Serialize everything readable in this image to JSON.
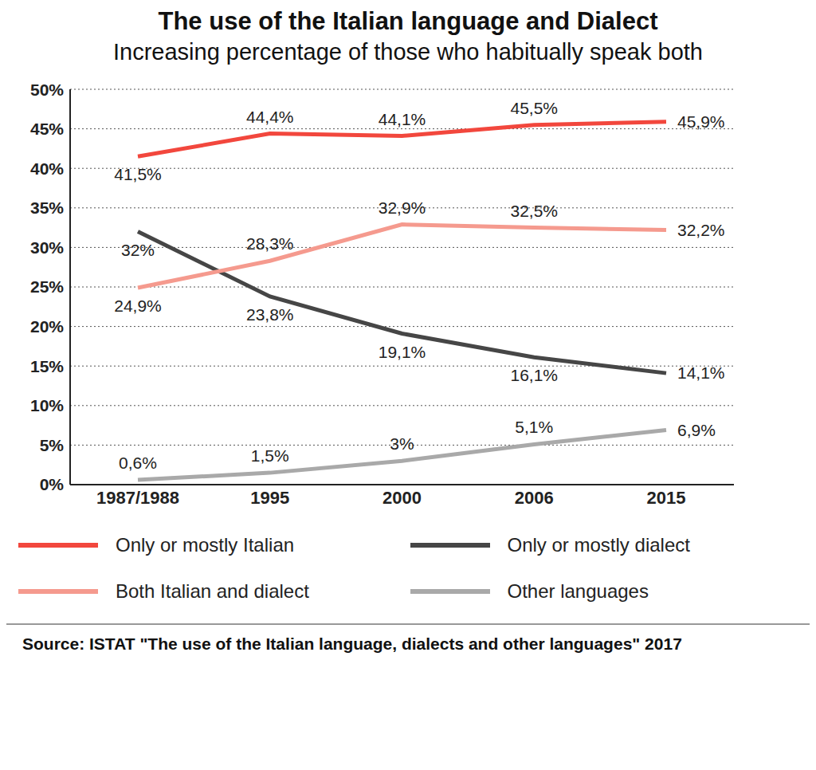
{
  "chart_data": {
    "type": "line",
    "title": "The use of the Italian language and Dialect",
    "subtitle": "Increasing percentage of those who habitually speak both",
    "categories": [
      "1987/1988",
      "1995",
      "2000",
      "2006",
      "2015"
    ],
    "series": [
      {
        "name": "Only or mostly Italian",
        "color": "#f2473d",
        "values": [
          41.5,
          44.4,
          44.1,
          45.5,
          45.9
        ],
        "value_labels": [
          "41,5%",
          "44,4%",
          "44,1%",
          "45,5%",
          "45,9%"
        ]
      },
      {
        "name": "Only or mostly dialect",
        "color": "#464646",
        "values": [
          32,
          23.8,
          19.1,
          16.1,
          14.1
        ],
        "value_labels": [
          "32%",
          "23,8%",
          "19,1%",
          "16,1%",
          "14,1%"
        ]
      },
      {
        "name": "Both Italian and dialect",
        "color": "#f59a8e",
        "values": [
          24.9,
          28.3,
          32.9,
          32.5,
          32.2
        ],
        "value_labels": [
          "24,9%",
          "28,3%",
          "32,9%",
          "32,5%",
          "32,2%"
        ]
      },
      {
        "name": "Other languages",
        "color": "#a9a9a9",
        "values": [
          0.6,
          1.5,
          3,
          5.1,
          6.9
        ],
        "value_labels": [
          "0,6%",
          "1,5%",
          "3%",
          "5,1%",
          "6,9%"
        ]
      }
    ],
    "ylim": [
      0,
      50
    ],
    "yticks": [
      {
        "value": 0,
        "label": "0%"
      },
      {
        "value": 5,
        "label": "5%"
      },
      {
        "value": 10,
        "label": "10%"
      },
      {
        "value": 15,
        "label": "15%"
      },
      {
        "value": 20,
        "label": "20%"
      },
      {
        "value": 25,
        "label": "25%"
      },
      {
        "value": 30,
        "label": "30%"
      },
      {
        "value": 35,
        "label": "35%"
      },
      {
        "value": 40,
        "label": "40%"
      },
      {
        "value": 45,
        "label": "45%"
      },
      {
        "value": 50,
        "label": "50%"
      }
    ],
    "grid": true,
    "legend": "bottom",
    "data_labels": true,
    "source": "Source: ISTAT \"The use of the Italian language, dialects and other languages\" 2017"
  }
}
